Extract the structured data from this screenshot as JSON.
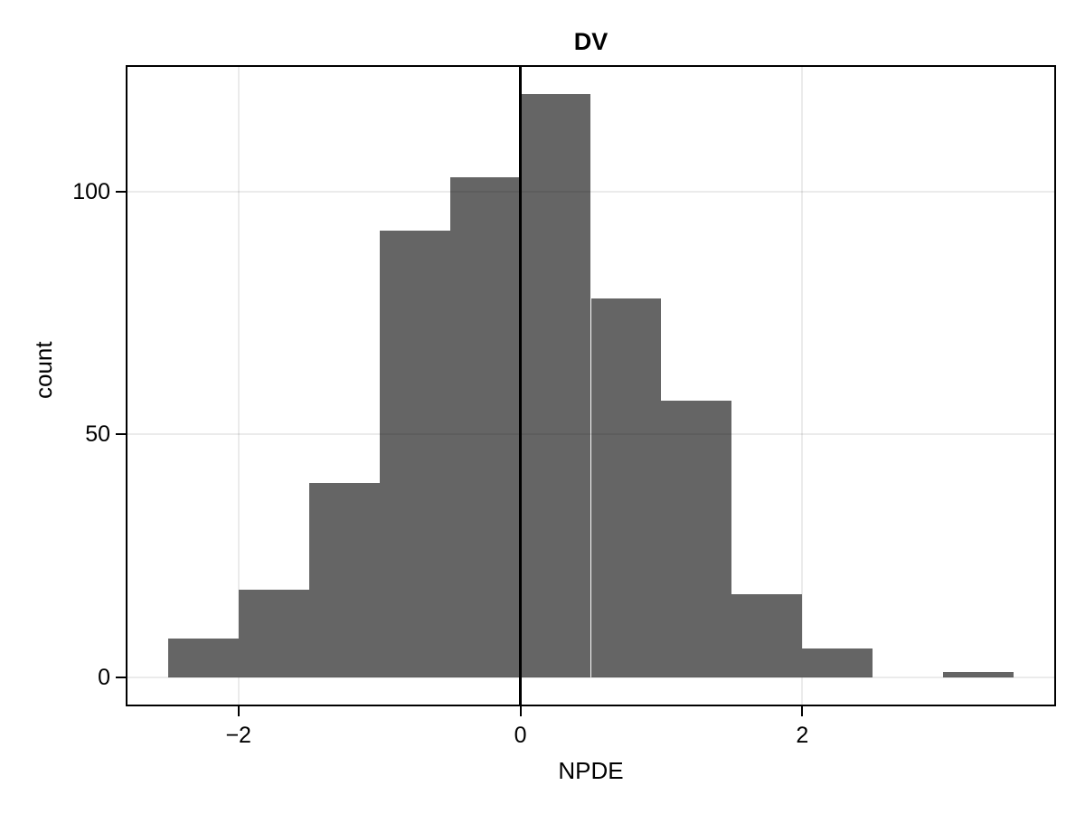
{
  "title": "DV",
  "axes": {
    "x_label": "NPDE",
    "y_label": "count"
  },
  "chart_data": {
    "type": "bar",
    "subtype": "histogram",
    "title": "DV",
    "xlabel": "NPDE",
    "ylabel": "count",
    "bin_width": 0.5,
    "bins": [
      {
        "x0": -2.5,
        "x1": -2.0,
        "count": 8
      },
      {
        "x0": -2.0,
        "x1": -1.5,
        "count": 18
      },
      {
        "x0": -1.5,
        "x1": -1.0,
        "count": 40
      },
      {
        "x0": -1.0,
        "x1": -0.5,
        "count": 92
      },
      {
        "x0": -0.5,
        "x1": 0.0,
        "count": 103
      },
      {
        "x0": 0.0,
        "x1": 0.5,
        "count": 120
      },
      {
        "x0": 0.5,
        "x1": 1.0,
        "count": 78
      },
      {
        "x0": 1.0,
        "x1": 1.5,
        "count": 57
      },
      {
        "x0": 1.5,
        "x1": 2.0,
        "count": 17
      },
      {
        "x0": 2.0,
        "x1": 2.5,
        "count": 6
      },
      {
        "x0": 2.5,
        "x1": 3.0,
        "count": 0
      },
      {
        "x0": 3.0,
        "x1": 3.5,
        "count": 1
      }
    ],
    "x_ticks": [
      {
        "value": -2,
        "label": "−2"
      },
      {
        "value": 0,
        "label": "0"
      },
      {
        "value": 2,
        "label": "2"
      }
    ],
    "y_ticks": [
      {
        "value": 0,
        "label": "0"
      },
      {
        "value": 50,
        "label": "50"
      },
      {
        "value": 100,
        "label": "100"
      }
    ],
    "xlim": [
      -2.8,
      3.8
    ],
    "ylim": [
      -6,
      126
    ],
    "reference_line_x": 0,
    "grid": "major",
    "legend": "none",
    "colors": {
      "bar_fill": "#656565",
      "grid_line": "#ebebeb",
      "grid_overlay": "rgba(0,0,0,0.08)",
      "reference_line": "#000000",
      "panel_border": "#000000",
      "tick": "#000000",
      "text": "#000000",
      "background": "#ffffff"
    }
  }
}
